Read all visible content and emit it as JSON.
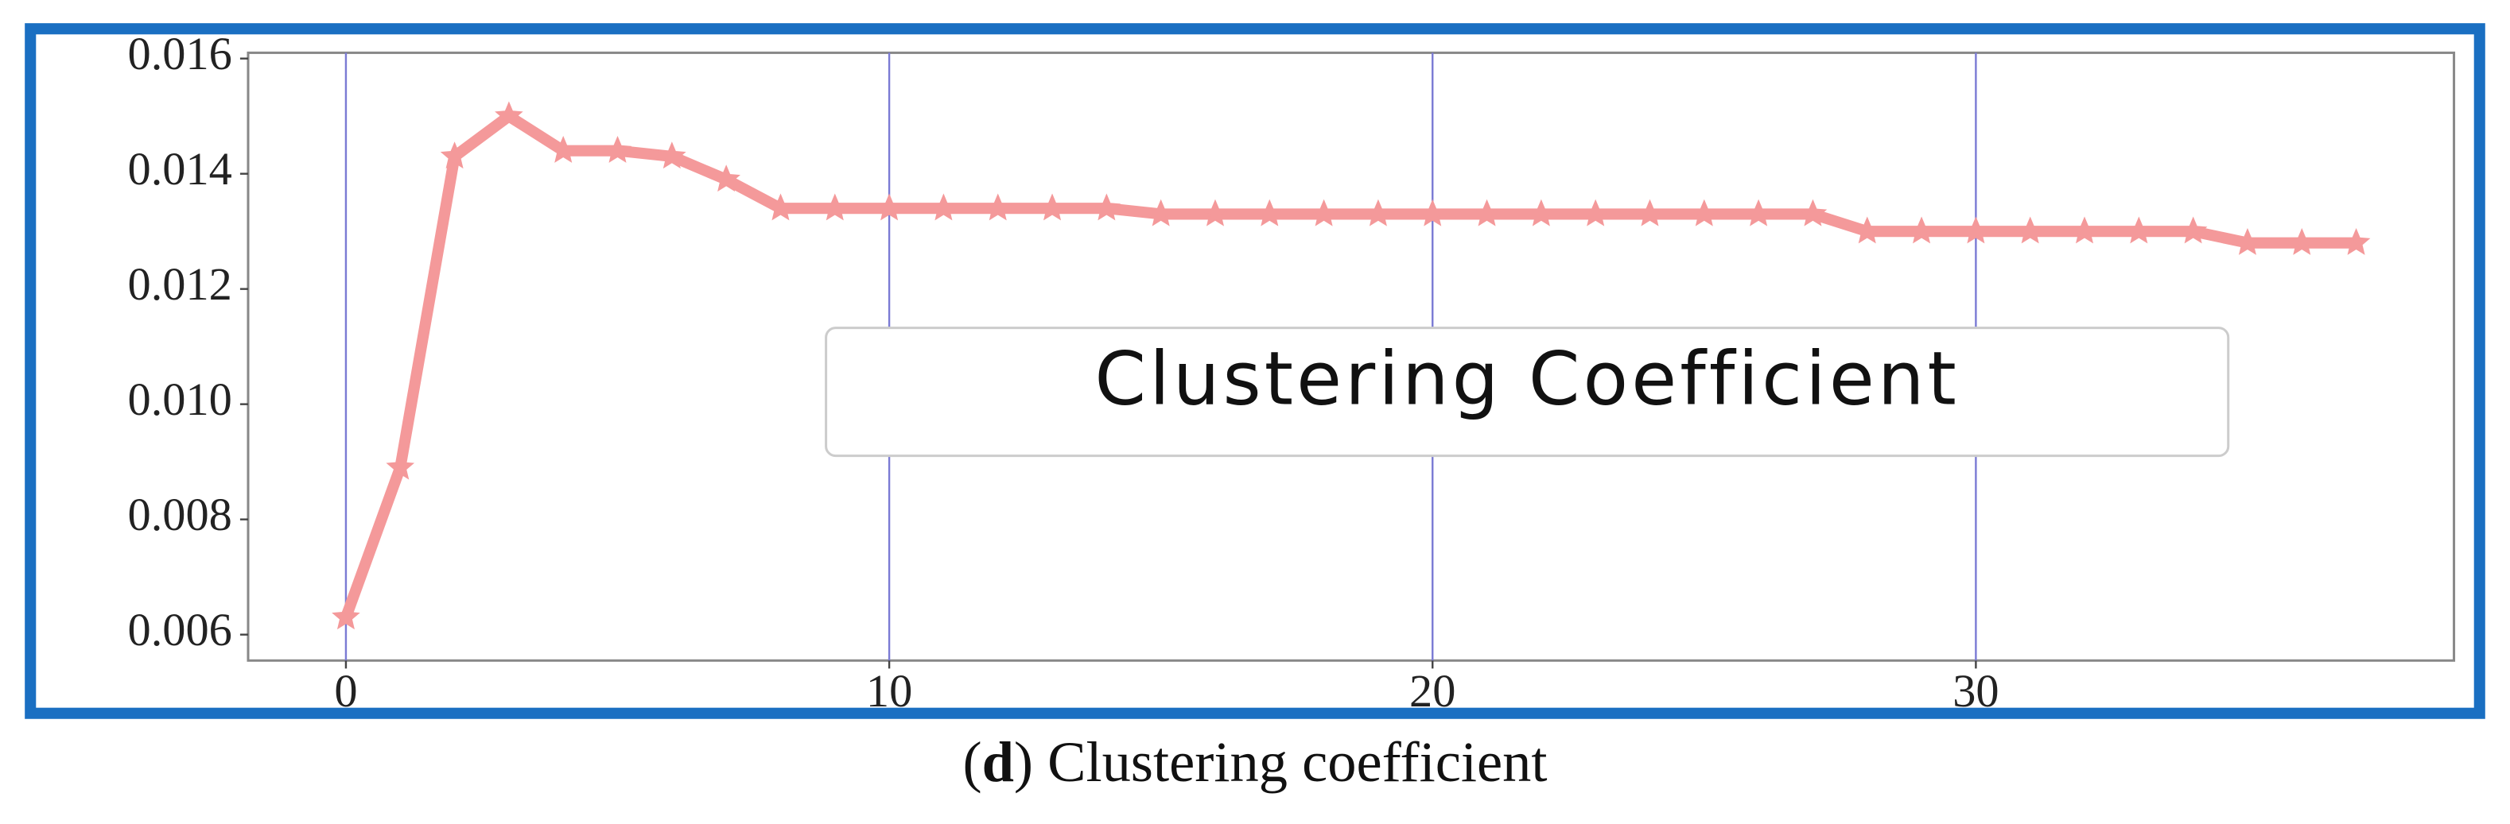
{
  "chart_data": {
    "type": "line",
    "x": [
      0,
      1,
      2,
      3,
      4,
      5,
      6,
      7,
      8,
      9,
      10,
      11,
      12,
      13,
      14,
      15,
      16,
      17,
      18,
      19,
      20,
      21,
      22,
      23,
      24,
      25,
      26,
      27,
      28,
      29,
      30,
      31,
      32,
      33,
      34,
      35,
      36,
      37
    ],
    "series": [
      {
        "name": "Clustering Coefficient",
        "color": "#f4999a",
        "values": [
          0.0063,
          0.0089,
          0.0143,
          0.015,
          0.0144,
          0.0144,
          0.0143,
          0.0139,
          0.0134,
          0.0134,
          0.0134,
          0.0134,
          0.0134,
          0.0134,
          0.0134,
          0.0133,
          0.0133,
          0.0133,
          0.0133,
          0.0133,
          0.0133,
          0.0133,
          0.0133,
          0.0133,
          0.0133,
          0.0133,
          0.0133,
          0.0133,
          0.013,
          0.013,
          0.013,
          0.013,
          0.013,
          0.013,
          0.013,
          0.0128,
          0.0128,
          0.0128
        ]
      }
    ],
    "xlim": [
      -1.8,
      38.8
    ],
    "xticks": [
      0,
      10,
      20,
      30
    ],
    "ylim": [
      0.00555,
      0.0161
    ],
    "yticks": [
      0.006,
      0.008,
      {
        "value": 0.01,
        "label": "0.010"
      },
      0.012,
      0.014,
      0.016
    ],
    "grid": "x",
    "grid_color": "#7b7bd4",
    "frame_color": "#1a6fc2"
  },
  "caption": [
    "(",
    "d",
    ") Clustering coefficient"
  ]
}
